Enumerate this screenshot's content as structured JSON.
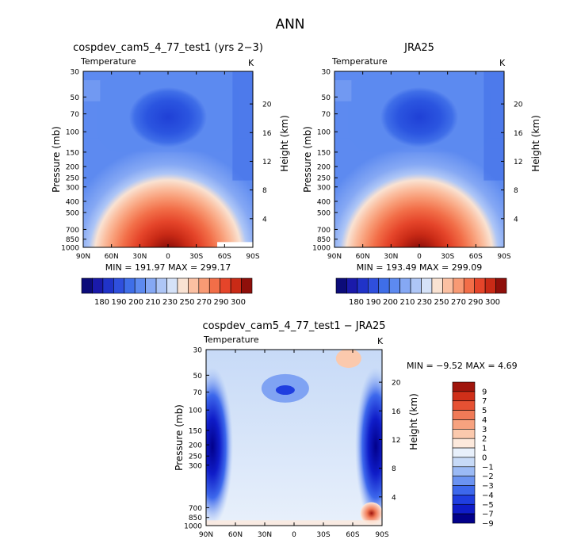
{
  "page": {
    "title": "ANN"
  },
  "colors": {
    "temperature_colormap": [
      "#0c0c7a",
      "#1a1aaa",
      "#2033c8",
      "#2f4fdd",
      "#3f6ee8",
      "#5d8af0",
      "#85a8f4",
      "#aec6f6",
      "#d5e2f8",
      "#f9e2d2",
      "#fbc0a2",
      "#f89a74",
      "#f26e48",
      "#e5452a",
      "#c92a16",
      "#8f0f0a"
    ],
    "diff_colormap": [
      "#02008a",
      "#0f1cc8",
      "#1f3ee0",
      "#3d68ec",
      "#6b93f1",
      "#9bbaf5",
      "#c7daf7",
      "#e8f0fb",
      "#fde9dc",
      "#fbc9ad",
      "#f7a27f",
      "#f07a57",
      "#e65133",
      "#cf2f19",
      "#a0150c"
    ]
  },
  "chart_data": [
    {
      "type": "heatmap",
      "title": "cospdev_cam5_4_77_test1 (yrs 2−3)",
      "variable": "Temperature",
      "units": "K",
      "ylabel": "Pressure (mb)",
      "y2label": "Height (km)",
      "x_ticks": [
        "90N",
        "60N",
        "30N",
        "0",
        "30S",
        "60S",
        "90S"
      ],
      "y_ticks": [
        30,
        50,
        70,
        100,
        150,
        200,
        250,
        300,
        400,
        500,
        700,
        850,
        1000
      ],
      "y2_ticks": [
        20,
        16,
        12,
        8,
        4
      ],
      "stats": {
        "min_label": "MIN =",
        "min": "191.97",
        "max_label": "MAX =",
        "max": "299.17"
      },
      "colorbar_ticks": [
        "180",
        "190",
        "200",
        "210",
        "230",
        "250",
        "270",
        "290",
        "300"
      ],
      "has_colorbar": true
    },
    {
      "type": "heatmap",
      "title": "JRA25",
      "variable": "Temperature",
      "units": "K",
      "ylabel": "Pressure (mb)",
      "y2label": "Height (km)",
      "x_ticks": [
        "90N",
        "60N",
        "30N",
        "0",
        "30S",
        "60S",
        "90S"
      ],
      "y_ticks": [
        30,
        50,
        70,
        100,
        150,
        200,
        250,
        300,
        400,
        500,
        700,
        850,
        1000
      ],
      "y2_ticks": [
        20,
        16,
        12,
        8,
        4
      ],
      "stats": {
        "min_label": "MIN =",
        "min": "193.49",
        "max_label": "MAX =",
        "max": "299.09"
      },
      "colorbar_ticks": [
        "180",
        "190",
        "200",
        "210",
        "230",
        "250",
        "270",
        "290",
        "300"
      ],
      "has_colorbar": true
    },
    {
      "type": "heatmap",
      "title": "cospdev_cam5_4_77_test1 − JRA25",
      "variable": "Temperature",
      "units": "K",
      "ylabel": "Pressure (mb)",
      "y2label": "Height (km)",
      "x_ticks": [
        "90N",
        "60N",
        "30N",
        "0",
        "30S",
        "60S",
        "90S"
      ],
      "y_ticks": [
        30,
        50,
        70,
        100,
        150,
        200,
        250,
        300,
        700,
        850,
        1000
      ],
      "y2_ticks": [
        20,
        16,
        12,
        8,
        4
      ],
      "stats": {
        "min_label": "MIN =",
        "min": "−9.52",
        "max_label": "MAX =",
        "max": "4.69"
      },
      "colorbar_ticks": [
        "9",
        "7",
        "5",
        "4",
        "3",
        "2",
        "1",
        "0",
        "−1",
        "−2",
        "−3",
        "−4",
        "−5",
        "−7",
        "−9"
      ],
      "has_colorbar": true
    }
  ]
}
